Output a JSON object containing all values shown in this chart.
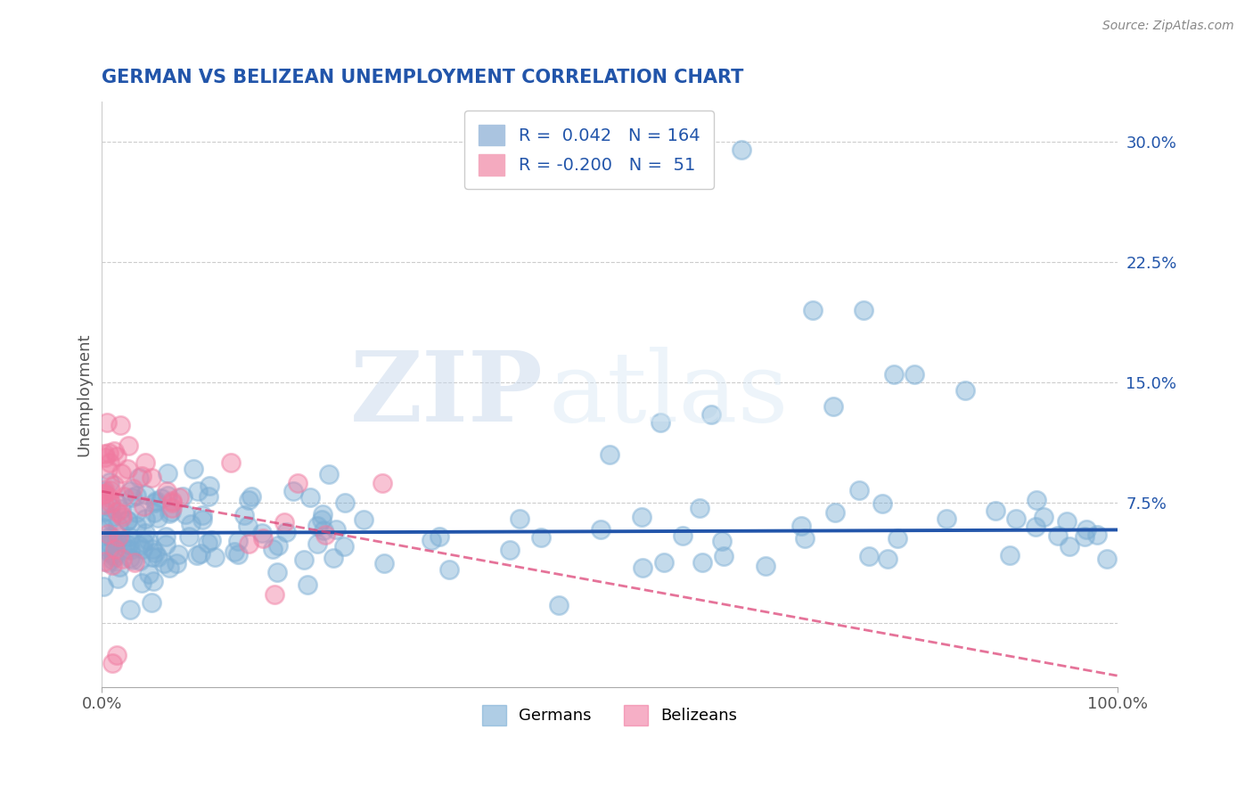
{
  "title": "GERMAN VS BELIZEAN UNEMPLOYMENT CORRELATION CHART",
  "source_text": "Source: ZipAtlas.com",
  "ylabel": "Unemployment",
  "xlim": [
    0,
    1.0
  ],
  "ylim": [
    -0.04,
    0.325
  ],
  "ytick_vals": [
    0.075,
    0.15,
    0.225,
    0.3
  ],
  "ytick_labels": [
    "7.5%",
    "15.0%",
    "22.5%",
    "30.0%"
  ],
  "german_R": 0.042,
  "german_N": 164,
  "belizean_R": -0.2,
  "belizean_N": 51,
  "german_color": "#7aadd4",
  "belizean_color": "#f07aa0",
  "german_line_color": "#2255aa",
  "belizean_line_color": "#dd4477",
  "background_color": "#ffffff",
  "grid_color": "#cccccc",
  "title_color": "#2255aa",
  "german_line_intercept": 0.056,
  "german_line_slope": 0.002,
  "belizean_line_intercept": 0.082,
  "belizean_line_slope": -0.115
}
